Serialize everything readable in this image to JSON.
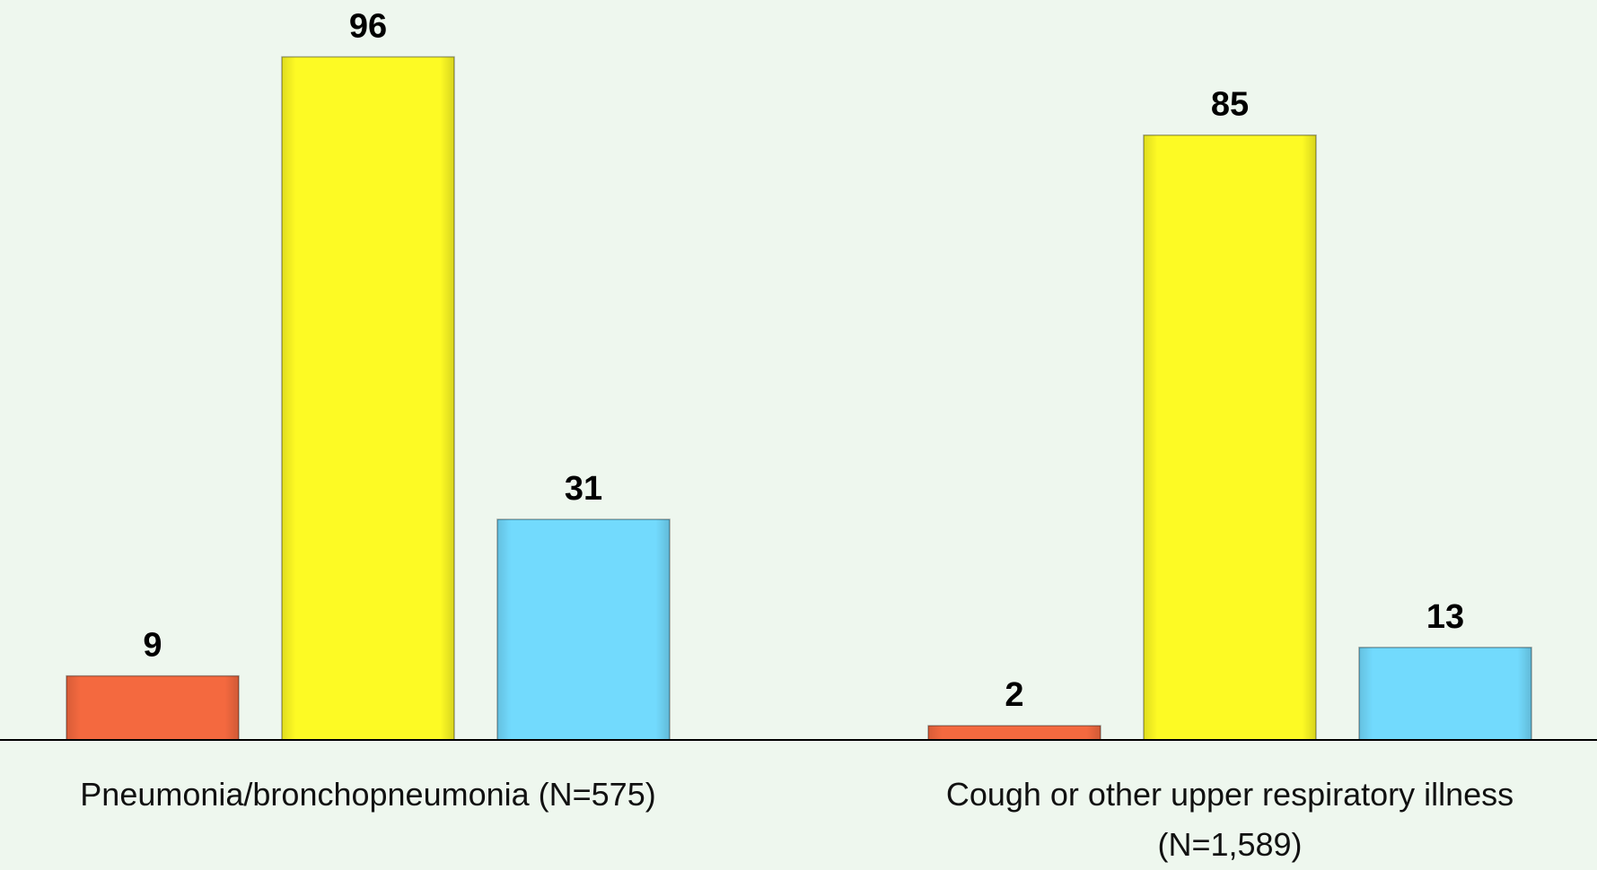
{
  "chart_data": {
    "type": "bar",
    "categories": [
      "Pneumonia/bronchopneumonia (N=575)",
      "Cough or other upper respiratory illness (N=1,589)"
    ],
    "series": [
      {
        "color": "#f4693f",
        "values": [
          9,
          2
        ]
      },
      {
        "color": "#fdfa24",
        "values": [
          96,
          85
        ]
      },
      {
        "color": "#72dafd",
        "values": [
          31,
          13
        ]
      }
    ],
    "ylim": [
      0,
      104
    ]
  }
}
